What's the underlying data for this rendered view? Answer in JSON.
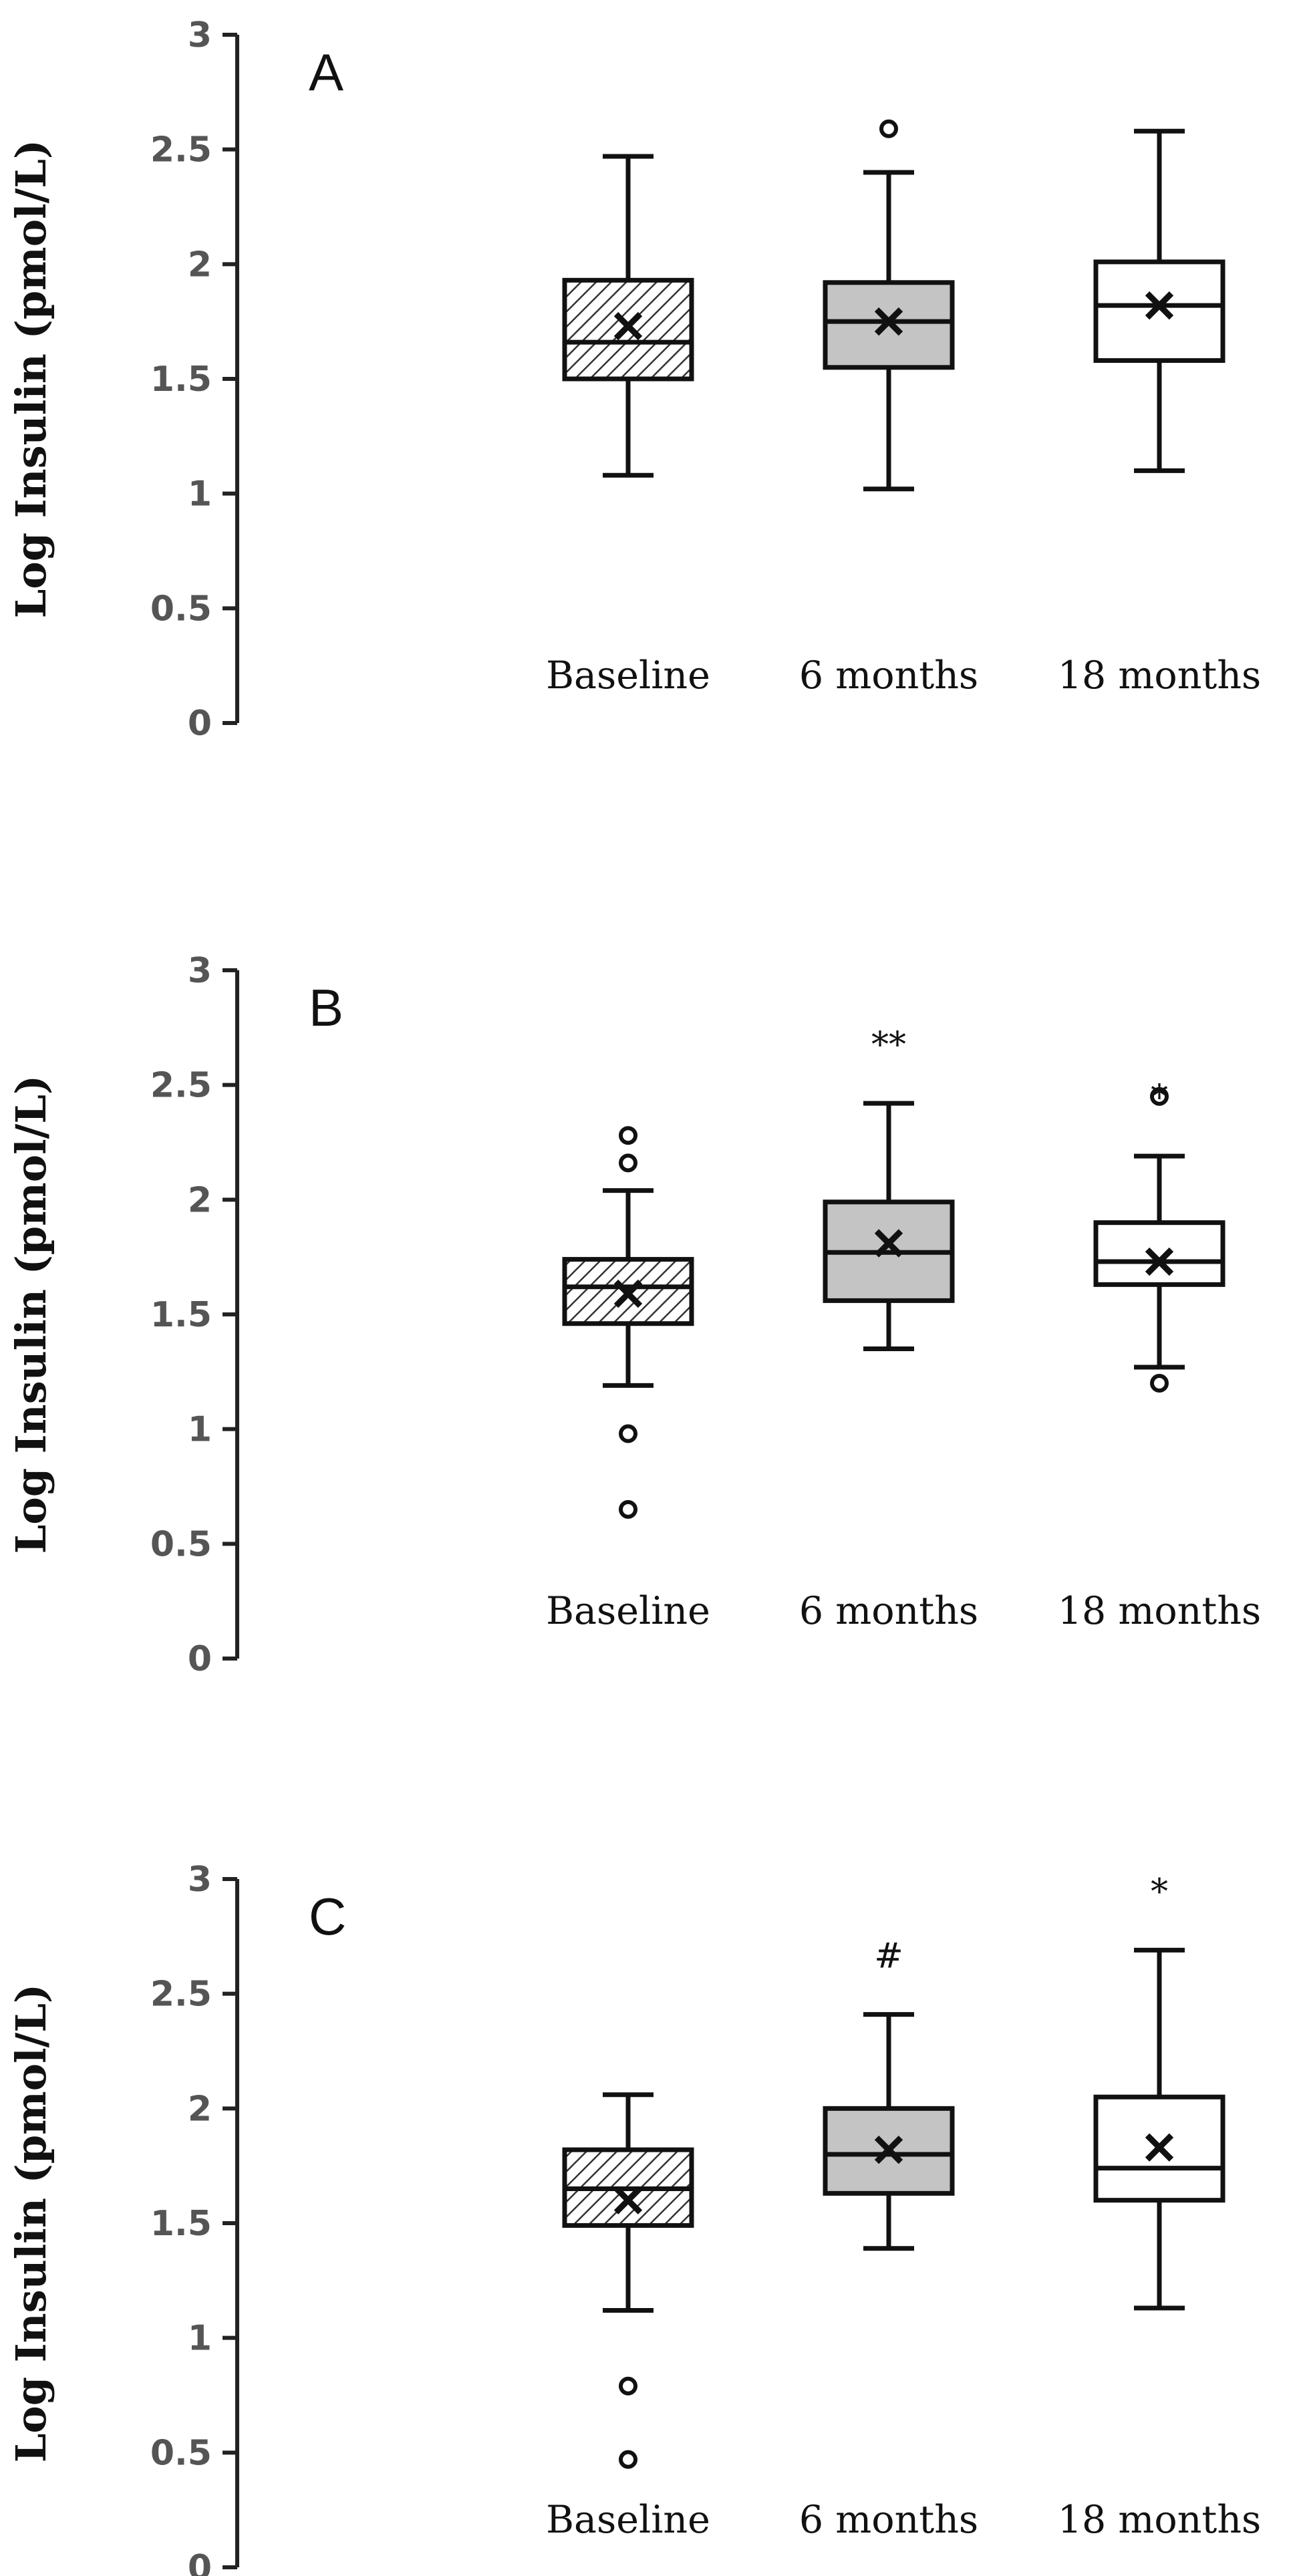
{
  "colors": {
    "axis": "#222222",
    "box_stroke": "#111111",
    "gray_fill": "#c4c4c4",
    "hatch": "#333333"
  },
  "chart_data": [
    {
      "type": "box",
      "panel": "A",
      "ylabel": "Log Insulin (pmol/L)",
      "ylim": [
        0,
        3
      ],
      "yticks": [
        "0",
        "0.5",
        "1",
        "1.5",
        "2",
        "2.5",
        "3"
      ],
      "categories": [
        "Baseline",
        "6 months",
        "18 months"
      ],
      "boxes": [
        {
          "fill": "hatched",
          "whisker_low": 1.08,
          "q1": 1.5,
          "median": 1.66,
          "q3": 1.93,
          "whisker_high": 2.47,
          "mean": 1.73,
          "outliers": [],
          "annotation": ""
        },
        {
          "fill": "gray",
          "whisker_low": 1.02,
          "q1": 1.55,
          "median": 1.75,
          "q3": 1.92,
          "whisker_high": 2.4,
          "mean": 1.75,
          "outliers": [
            2.59
          ],
          "annotation": ""
        },
        {
          "fill": "white",
          "whisker_low": 1.1,
          "q1": 1.58,
          "median": 1.82,
          "q3": 2.01,
          "whisker_high": 2.58,
          "mean": 1.82,
          "outliers": [],
          "annotation": ""
        }
      ]
    },
    {
      "type": "box",
      "panel": "B",
      "ylabel": "Log Insulin (pmol/L)",
      "ylim": [
        0,
        3
      ],
      "yticks": [
        "0",
        "0.5",
        "1",
        "1.5",
        "2",
        "2.5",
        "3"
      ],
      "categories": [
        "Baseline",
        "6 months",
        "18 months"
      ],
      "boxes": [
        {
          "fill": "hatched",
          "whisker_low": 1.19,
          "q1": 1.46,
          "median": 1.62,
          "q3": 1.74,
          "whisker_high": 2.04,
          "mean": 1.59,
          "outliers": [
            2.28,
            2.16,
            0.98,
            0.65
          ],
          "annotation": ""
        },
        {
          "fill": "gray",
          "whisker_low": 1.35,
          "q1": 1.56,
          "median": 1.77,
          "q3": 1.99,
          "whisker_high": 2.42,
          "mean": 1.81,
          "outliers": [],
          "annotation": "**"
        },
        {
          "fill": "white",
          "whisker_low": 1.27,
          "q1": 1.63,
          "median": 1.73,
          "q3": 1.9,
          "whisker_high": 2.19,
          "mean": 1.73,
          "outliers": [
            2.45,
            1.2
          ],
          "annotation": "*"
        }
      ]
    },
    {
      "type": "box",
      "panel": "C",
      "ylabel": "Log Insulin (pmol/L)",
      "ylim": [
        0,
        3
      ],
      "yticks": [
        "0",
        "0.5",
        "1",
        "1.5",
        "2",
        "2.5",
        "3"
      ],
      "categories": [
        "Baseline",
        "6 months",
        "18 months"
      ],
      "boxes": [
        {
          "fill": "hatched",
          "whisker_low": 1.12,
          "q1": 1.49,
          "median": 1.65,
          "q3": 1.82,
          "whisker_high": 2.06,
          "mean": 1.6,
          "outliers": [
            0.79,
            0.47
          ],
          "annotation": ""
        },
        {
          "fill": "gray",
          "whisker_low": 1.39,
          "q1": 1.63,
          "median": 1.8,
          "q3": 2.0,
          "whisker_high": 2.41,
          "mean": 1.82,
          "outliers": [],
          "annotation": "#"
        },
        {
          "fill": "white",
          "whisker_low": 1.13,
          "q1": 1.6,
          "median": 1.74,
          "q3": 2.05,
          "whisker_high": 2.69,
          "mean": 1.83,
          "outliers": [],
          "annotation": "*"
        }
      ]
    }
  ]
}
